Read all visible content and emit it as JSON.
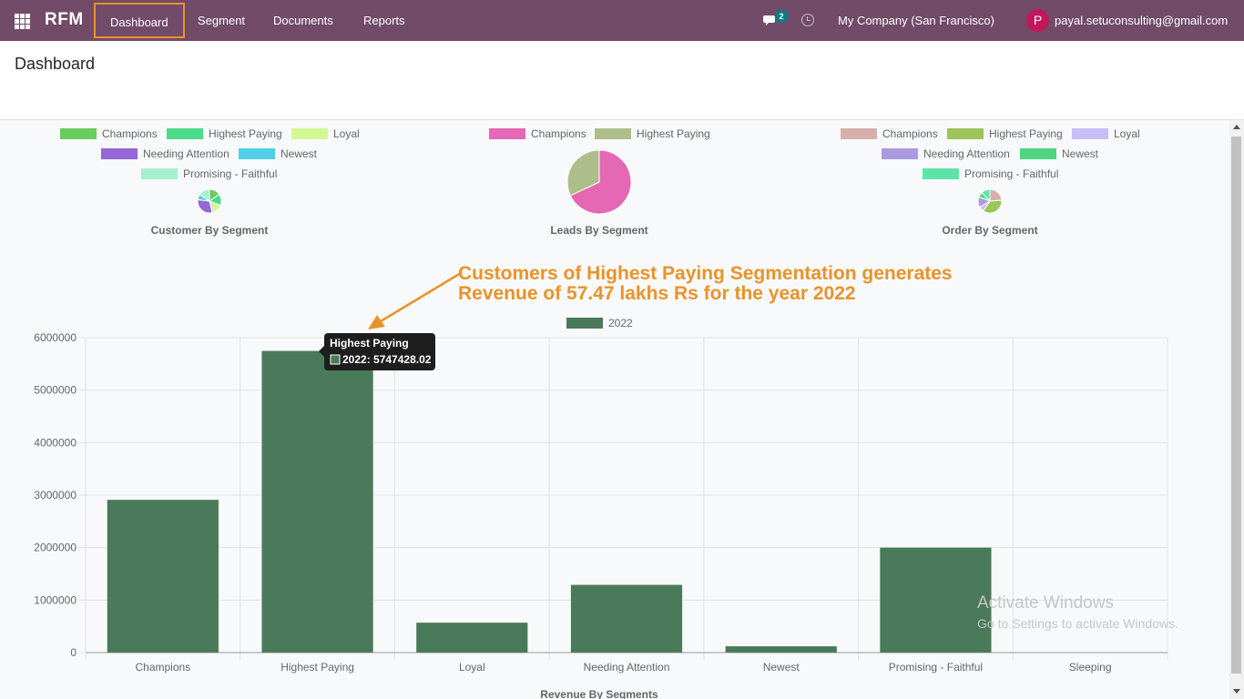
{
  "navbar": {
    "brand": "RFM",
    "menu": [
      "Dashboard",
      "Segment",
      "Documents",
      "Reports"
    ],
    "chat_count": "2",
    "company": "My Company (San Francisco)",
    "avatar_letter": "P",
    "user": "payal.setuconsulting@gmail.com"
  },
  "page": {
    "title": "Dashboard"
  },
  "pies": [
    {
      "title": "Customer By Segment",
      "legend": [
        {
          "label": "Champions",
          "color": "#6ACB5F"
        },
        {
          "label": "Highest Paying",
          "color": "#4CDB8A"
        },
        {
          "label": "Loyal",
          "color": "#D4F794"
        },
        {
          "label": "Needing Attention",
          "color": "#9466D8"
        },
        {
          "label": "Newest",
          "color": "#52CFE6"
        },
        {
          "label": "Promising - Faithful",
          "color": "#A4F2CC"
        }
      ]
    },
    {
      "title": "Leads By Segment",
      "legend": [
        {
          "label": "Champions",
          "color": "#E468B4"
        },
        {
          "label": "Highest Paying",
          "color": "#AEBE8A"
        }
      ]
    },
    {
      "title": "Order By Segment",
      "legend": [
        {
          "label": "Champions",
          "color": "#D6AFAA"
        },
        {
          "label": "Highest Paying",
          "color": "#9CC55A"
        },
        {
          "label": "Loyal",
          "color": "#C9BDF5"
        },
        {
          "label": "Needing Attention",
          "color": "#AC9AE0"
        },
        {
          "label": "Newest",
          "color": "#4FD482"
        },
        {
          "label": "Promising - Faithful",
          "color": "#5DE4A8"
        }
      ]
    }
  ],
  "annotation": {
    "line1": "Customers of Highest Paying Segmentation generates",
    "line2": "Revenue of 57.47 lakhs Rs for the year 2022"
  },
  "tooltip": {
    "title": "Highest Paying",
    "body": "2022: 5747428.02"
  },
  "watermark": {
    "line1": "Activate Windows",
    "line2": "Go to Settings to activate Windows."
  },
  "chart_data": {
    "type": "bar",
    "title": "Revenue By Segments",
    "categories": [
      "Champions",
      "Highest Paying",
      "Loyal",
      "Needing Attention",
      "Newest",
      "Promising - Faithful",
      "Sleeping"
    ],
    "series": [
      {
        "name": "2022",
        "values": [
          2910000,
          5747428.02,
          570000,
          1290000,
          120000,
          2000000,
          0
        ],
        "color": "#4A7A59"
      }
    ],
    "yticks": [
      "0",
      "1000000",
      "2000000",
      "3000000",
      "4000000",
      "5000000",
      "6000000"
    ],
    "ylim": [
      0,
      6000000
    ],
    "grid": true,
    "legend": "top"
  }
}
